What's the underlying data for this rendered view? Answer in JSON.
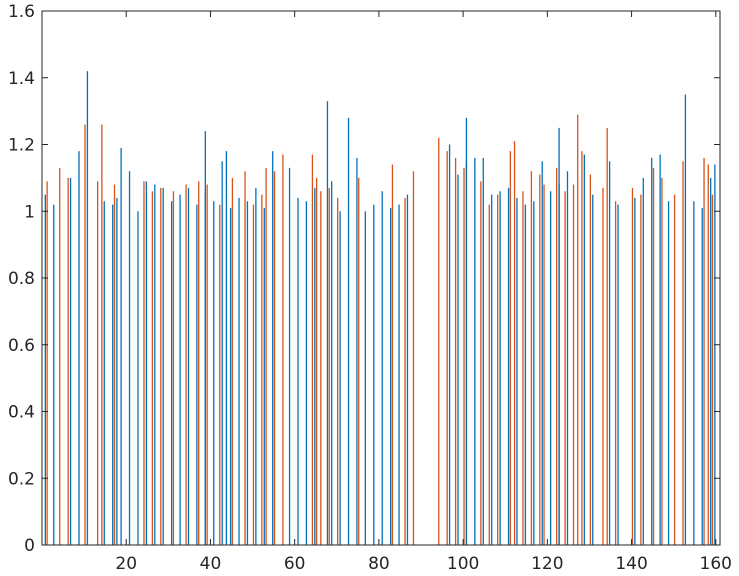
{
  "chart_data": {
    "type": "bar",
    "title": "",
    "xlabel": "",
    "ylabel": "",
    "xlim": [
      0,
      161
    ],
    "ylim": [
      0,
      1.6
    ],
    "xticks": [
      20,
      40,
      60,
      80,
      100,
      120,
      140,
      160
    ],
    "yticks": [
      0,
      0.2,
      0.4,
      0.6,
      0.8,
      1,
      1.2,
      1.4,
      1.6
    ],
    "xtick_labels": [
      "20",
      "40",
      "60",
      "80",
      "100",
      "120",
      "140",
      "160"
    ],
    "ytick_labels": [
      "0",
      "0.2",
      "0.4",
      "0.6",
      "0.8",
      "1",
      "1.2",
      "1.4",
      "1.6"
    ],
    "grid": false,
    "box": true,
    "colors": {
      "series1": "#0072BD",
      "series2": "#D95319",
      "axis": "#262626"
    },
    "x": [
      1,
      2,
      3,
      4,
      5,
      6,
      7,
      8,
      9,
      10,
      11,
      12,
      13,
      14,
      15,
      16,
      17,
      18,
      19,
      20,
      21,
      22,
      23,
      24,
      25,
      26,
      27,
      28,
      29,
      30,
      31,
      32,
      33,
      34,
      35,
      36,
      37,
      38,
      39,
      40,
      41,
      42,
      43,
      44,
      45,
      46,
      47,
      48,
      49,
      50,
      51,
      52,
      53,
      54,
      55,
      56,
      57,
      58,
      59,
      60,
      61,
      62,
      63,
      64,
      65,
      66,
      67,
      68,
      69,
      70,
      71,
      72,
      73,
      74,
      75,
      76,
      77,
      78,
      79,
      80,
      81,
      82,
      83,
      84,
      85,
      86,
      87,
      88,
      89,
      90,
      91,
      92,
      93,
      94,
      95,
      96,
      97,
      98,
      99,
      100,
      101,
      102,
      103,
      104,
      105,
      106,
      107,
      108,
      109,
      110,
      111,
      112,
      113,
      114,
      115,
      116,
      117,
      118,
      119,
      120,
      121,
      122,
      123,
      124,
      125,
      126,
      127,
      128,
      129,
      130,
      131,
      132,
      133,
      134,
      135,
      136,
      137,
      138,
      139,
      140,
      141,
      142,
      143,
      144,
      145,
      146,
      147,
      148,
      149,
      150,
      151,
      152,
      153,
      154,
      155,
      156,
      157,
      158,
      159,
      160
    ],
    "series": [
      {
        "values": [
          1.05,
          1.02,
          1.1,
          1.18,
          1.42,
          1.03,
          1.02,
          1.04,
          1.19,
          1.12,
          1.0,
          1.09,
          1.08,
          1.07,
          1.03,
          1.05,
          1.07,
          1.02,
          1.06,
          1.03,
          1.24,
          1.01,
          1.15,
          1.18,
          1.04,
          1.03,
          1.07,
          1.01,
          1.18,
          1.13,
          1.04,
          1.03,
          1.07,
          1.33,
          1.09,
          1.0,
          1.28,
          1.16,
          1.0,
          1.02,
          1.06,
          1.01,
          1.02,
          1.05,
          1.2,
          1.11,
          1.15,
          1.16,
          1.28,
          1.16,
          1.05,
          1.06,
          1.07,
          1.04,
          1.02,
          1.03,
          1.15,
          1.06,
          1.08,
          1.25,
          1.12,
          1.17,
          1.05,
          1.15,
          1.02,
          1.04,
          1.1,
          1.16,
          1.17,
          1.03,
          1.35,
          1.03,
          1.01,
          1.1,
          1.14
        ],
        "x": [
          1,
          3,
          7,
          9,
          11,
          15,
          17,
          18,
          19,
          21,
          23,
          25,
          27,
          29,
          31,
          33,
          35,
          37,
          39,
          41,
          39,
          45,
          43,
          44,
          47,
          49,
          51,
          53,
          55,
          59,
          61,
          63,
          65,
          68,
          69,
          71,
          73,
          75,
          77,
          79,
          81,
          83,
          85,
          87,
          97,
          99,
          101,
          103,
          101,
          105,
          107,
          109,
          111,
          113,
          115,
          117,
          119,
          121,
          123,
          123,
          125,
          129,
          131,
          135,
          137,
          141,
          143,
          145,
          147,
          149,
          153,
          155,
          157,
          159,
          160
        ]
      },
      {
        "values": [
          1.09,
          1.13,
          1.1,
          1.26,
          1.09,
          1.26,
          1.08,
          1.09,
          1.06,
          1.07,
          1.06,
          1.08,
          1.09,
          1.08,
          1.02,
          1.1,
          1.12,
          1.02,
          1.05,
          1.13,
          1.12,
          1.17,
          1.17,
          1.1,
          1.06,
          1.07,
          1.04,
          1.1,
          1.14,
          1.04,
          1.12,
          1.22,
          1.16,
          1.18,
          1.13,
          1.09,
          1.02,
          1.05,
          1.18,
          1.21,
          1.06,
          1.12,
          1.11,
          1.08,
          1.13,
          1.06,
          1.08,
          1.29,
          1.18,
          1.11,
          1.07,
          1.25,
          1.03,
          1.07,
          1.05,
          1.13,
          1.1,
          1.05,
          1.15,
          1.16,
          1.14,
          1.05
        ],
        "x": [
          1,
          4,
          6,
          10,
          13,
          14,
          17,
          24,
          26,
          28,
          31,
          34,
          37,
          39,
          42,
          45,
          48,
          50,
          52,
          53,
          55,
          57,
          64,
          65,
          66,
          68,
          70,
          75,
          83,
          86,
          88,
          94,
          98,
          96,
          100,
          104,
          106,
          108,
          111,
          112,
          114,
          116,
          118,
          119,
          122,
          124,
          126,
          127,
          128,
          130,
          133,
          134,
          136,
          140,
          142,
          145,
          147,
          150,
          152,
          157,
          158,
          159
        ]
      }
    ]
  }
}
